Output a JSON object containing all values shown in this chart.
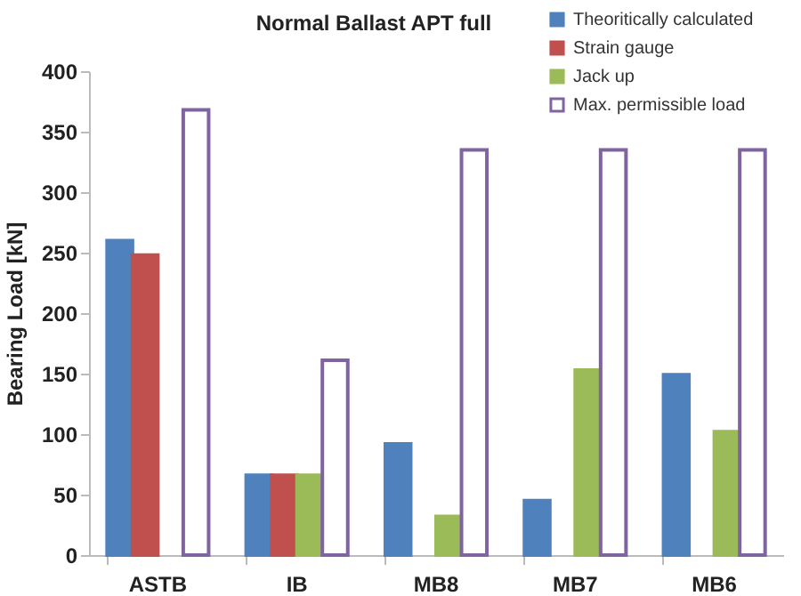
{
  "chart_data": {
    "type": "bar",
    "title": "Normal Ballast APT full",
    "ylabel": "Bearing Load [kN]",
    "categories": [
      "ASTB",
      "IB",
      "MB8",
      "MB7",
      "MB6"
    ],
    "series": [
      {
        "name": "Theoritically calculated",
        "color": "#4f81bd",
        "values": [
          260,
          66,
          92,
          45,
          149
        ]
      },
      {
        "name": "Strain gauge",
        "color": "#c0504d",
        "values": [
          248,
          66,
          null,
          null,
          null
        ]
      },
      {
        "name": "Jack up",
        "color": "#9bbb59",
        "values": [
          null,
          66,
          32,
          153,
          102
        ]
      },
      {
        "name": "Max. permissible load",
        "color": "#8064a2",
        "values": [
          368,
          161,
          335,
          335,
          335
        ]
      }
    ],
    "ylim": [
      0,
      400
    ],
    "yticks": [
      0,
      50,
      100,
      150,
      200,
      250,
      300,
      350,
      400
    ],
    "grid": false,
    "legend": "top right"
  }
}
